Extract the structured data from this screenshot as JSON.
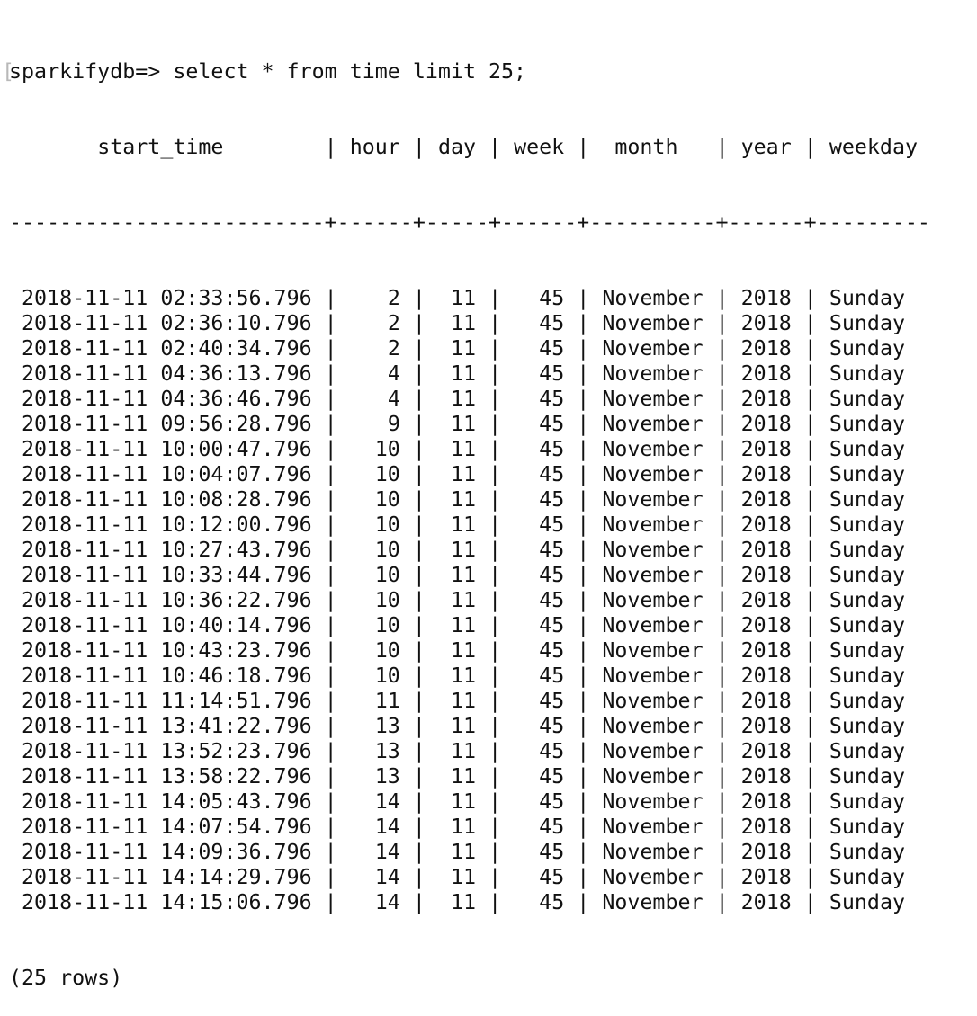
{
  "terminal": {
    "prompt": "sparkifydb=>",
    "command": "select * from time limit 25;",
    "bracket": "[",
    "divider": "-------------------------+------+-----+------+----------+------+---------",
    "row_count": "(25 rows)"
  },
  "table": {
    "columns": [
      "start_time",
      "hour",
      "day",
      "week",
      "month",
      "year",
      "weekday"
    ],
    "rows": [
      [
        "2018-11-11 02:33:56.796",
        "2",
        "11",
        "45",
        "November",
        "2018",
        "Sunday"
      ],
      [
        "2018-11-11 02:36:10.796",
        "2",
        "11",
        "45",
        "November",
        "2018",
        "Sunday"
      ],
      [
        "2018-11-11 02:40:34.796",
        "2",
        "11",
        "45",
        "November",
        "2018",
        "Sunday"
      ],
      [
        "2018-11-11 04:36:13.796",
        "4",
        "11",
        "45",
        "November",
        "2018",
        "Sunday"
      ],
      [
        "2018-11-11 04:36:46.796",
        "4",
        "11",
        "45",
        "November",
        "2018",
        "Sunday"
      ],
      [
        "2018-11-11 09:56:28.796",
        "9",
        "11",
        "45",
        "November",
        "2018",
        "Sunday"
      ],
      [
        "2018-11-11 10:00:47.796",
        "10",
        "11",
        "45",
        "November",
        "2018",
        "Sunday"
      ],
      [
        "2018-11-11 10:04:07.796",
        "10",
        "11",
        "45",
        "November",
        "2018",
        "Sunday"
      ],
      [
        "2018-11-11 10:08:28.796",
        "10",
        "11",
        "45",
        "November",
        "2018",
        "Sunday"
      ],
      [
        "2018-11-11 10:12:00.796",
        "10",
        "11",
        "45",
        "November",
        "2018",
        "Sunday"
      ],
      [
        "2018-11-11 10:27:43.796",
        "10",
        "11",
        "45",
        "November",
        "2018",
        "Sunday"
      ],
      [
        "2018-11-11 10:33:44.796",
        "10",
        "11",
        "45",
        "November",
        "2018",
        "Sunday"
      ],
      [
        "2018-11-11 10:36:22.796",
        "10",
        "11",
        "45",
        "November",
        "2018",
        "Sunday"
      ],
      [
        "2018-11-11 10:40:14.796",
        "10",
        "11",
        "45",
        "November",
        "2018",
        "Sunday"
      ],
      [
        "2018-11-11 10:43:23.796",
        "10",
        "11",
        "45",
        "November",
        "2018",
        "Sunday"
      ],
      [
        "2018-11-11 10:46:18.796",
        "10",
        "11",
        "45",
        "November",
        "2018",
        "Sunday"
      ],
      [
        "2018-11-11 11:14:51.796",
        "11",
        "11",
        "45",
        "November",
        "2018",
        "Sunday"
      ],
      [
        "2018-11-11 13:41:22.796",
        "13",
        "11",
        "45",
        "November",
        "2018",
        "Sunday"
      ],
      [
        "2018-11-11 13:52:23.796",
        "13",
        "11",
        "45",
        "November",
        "2018",
        "Sunday"
      ],
      [
        "2018-11-11 13:58:22.796",
        "13",
        "11",
        "45",
        "November",
        "2018",
        "Sunday"
      ],
      [
        "2018-11-11 14:05:43.796",
        "14",
        "11",
        "45",
        "November",
        "2018",
        "Sunday"
      ],
      [
        "2018-11-11 14:07:54.796",
        "14",
        "11",
        "45",
        "November",
        "2018",
        "Sunday"
      ],
      [
        "2018-11-11 14:09:36.796",
        "14",
        "11",
        "45",
        "November",
        "2018",
        "Sunday"
      ],
      [
        "2018-11-11 14:14:29.796",
        "14",
        "11",
        "45",
        "November",
        "2018",
        "Sunday"
      ],
      [
        "2018-11-11 14:15:06.796",
        "14",
        "11",
        "45",
        "November",
        "2018",
        "Sunday"
      ]
    ]
  }
}
